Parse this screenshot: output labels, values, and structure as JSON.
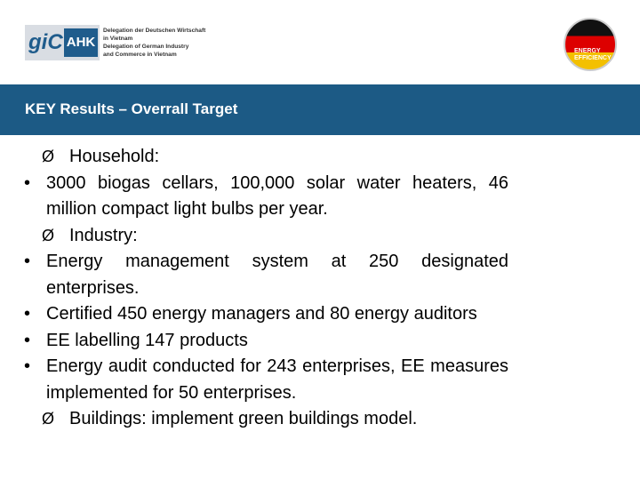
{
  "header": {
    "logo": {
      "mark": "giC",
      "name": "AHK",
      "lines": [
        "Delegation der Deutschen Wirtschaft",
        "in Vietnam",
        "Delegation of German Industry",
        "and Commerce in Vietnam"
      ]
    },
    "badge": [
      "ENERGY",
      "EFFICIENCY"
    ]
  },
  "title": "KEY Results – Overrall Target",
  "items": [
    {
      "text": "Household:",
      "sub": [
        "3000 biogas cellars, 100,000 solar water heaters, 46 million compact light bulbs per year."
      ]
    },
    {
      "text": "Industry:",
      "sub": [
        "Energy management system at 250 designated enterprises.",
        "Certified 450 energy managers and 80 energy auditors",
        "EE labelling 147 products",
        "Energy audit conducted for 243 enterprises, EE measures implemented for 50 enterprises."
      ]
    },
    {
      "text": "Buildings: implement green buildings model."
    }
  ]
}
